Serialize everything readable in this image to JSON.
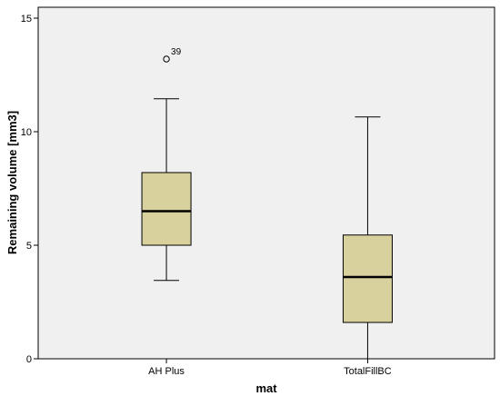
{
  "chart_data": {
    "type": "box",
    "xlabel": "mat",
    "ylabel": "Remaining volume [mm3]",
    "ylim": [
      0,
      15
    ],
    "yticks": [
      0,
      5,
      10,
      15
    ],
    "grid": false,
    "categories": [
      "AH Plus",
      "TotalFillBC"
    ],
    "boxes": [
      {
        "category": "AH Plus",
        "whisker_low": 3.45,
        "q1": 5.0,
        "median": 6.5,
        "q3": 8.2,
        "whisker_high": 11.45,
        "outliers": [
          {
            "value": 13.2,
            "label": "39"
          }
        ]
      },
      {
        "category": "TotalFillBC",
        "whisker_low": 0.0,
        "q1": 1.6,
        "median": 3.6,
        "q3": 5.45,
        "whisker_high": 10.65,
        "outliers": []
      }
    ],
    "colors": {
      "plot_background": "#f0f0f0",
      "box_fill": "#d9d19d",
      "stroke": "#000000"
    }
  }
}
